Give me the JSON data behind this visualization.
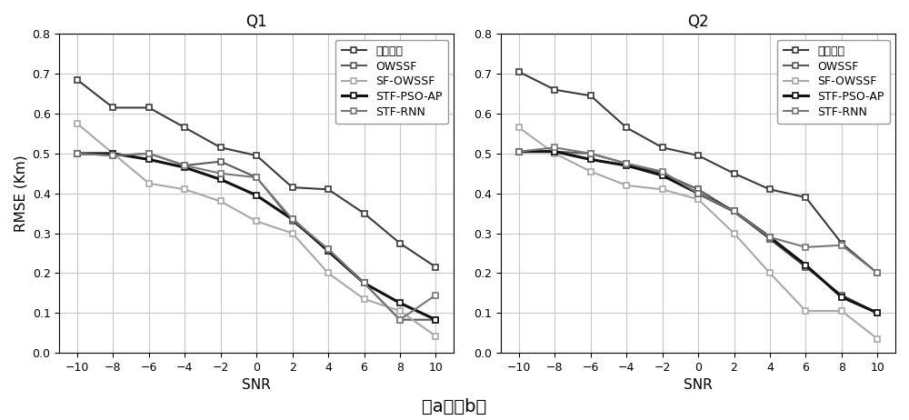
{
  "snr": [
    -10,
    -8,
    -6,
    -4,
    -2,
    0,
    2,
    4,
    6,
    8,
    10
  ],
  "Q1": {
    "两步定位": [
      0.685,
      0.615,
      0.615,
      0.565,
      0.515,
      0.495,
      0.415,
      0.41,
      0.35,
      0.275,
      0.215
    ],
    "OWSSF": [
      0.5,
      0.495,
      0.5,
      0.47,
      0.48,
      0.44,
      0.33,
      0.26,
      0.175,
      0.083,
      0.083
    ],
    "SF-OWSSF": [
      0.575,
      0.5,
      0.425,
      0.41,
      0.38,
      0.33,
      0.3,
      0.2,
      0.135,
      0.105,
      0.042
    ],
    "STF-PSO-AP": [
      0.5,
      0.5,
      0.485,
      0.465,
      0.435,
      0.395,
      0.335,
      0.255,
      0.175,
      0.125,
      0.083
    ],
    "STF-RNN": [
      0.5,
      0.495,
      0.5,
      0.47,
      0.45,
      0.44,
      0.335,
      0.26,
      0.175,
      0.083,
      0.145
    ]
  },
  "Q2": {
    "两步定位": [
      0.705,
      0.66,
      0.645,
      0.565,
      0.515,
      0.495,
      0.45,
      0.41,
      0.39,
      0.275,
      0.2
    ],
    "OWSSF": [
      0.505,
      0.505,
      0.5,
      0.475,
      0.45,
      0.41,
      0.355,
      0.285,
      0.215,
      0.145,
      0.1
    ],
    "SF-OWSSF": [
      0.565,
      0.5,
      0.455,
      0.42,
      0.41,
      0.385,
      0.3,
      0.2,
      0.105,
      0.105,
      0.035
    ],
    "STF-PSO-AP": [
      0.505,
      0.505,
      0.485,
      0.47,
      0.445,
      0.4,
      0.355,
      0.29,
      0.22,
      0.14,
      0.1
    ],
    "STF-RNN": [
      0.505,
      0.515,
      0.5,
      0.475,
      0.455,
      0.4,
      0.355,
      0.29,
      0.265,
      0.27,
      0.2
    ]
  },
  "series_styles": {
    "两步定位": {
      "color": "#3c3c3c",
      "linewidth": 1.5
    },
    "OWSSF": {
      "color": "#5a5a5a",
      "linewidth": 1.5
    },
    "SF-OWSSF": {
      "color": "#a8a8a8",
      "linewidth": 1.5
    },
    "STF-PSO-AP": {
      "color": "#111111",
      "linewidth": 2.2
    },
    "STF-RNN": {
      "color": "#787878",
      "linewidth": 1.5
    }
  },
  "xlabel": "SNR",
  "ylabel": "RMSE (Km)",
  "ylim": [
    0,
    0.8
  ],
  "yticks": [
    0,
    0.1,
    0.2,
    0.3,
    0.4,
    0.5,
    0.6,
    0.7,
    0.8
  ],
  "title_Q1": "Q1",
  "title_Q2": "Q2",
  "caption": "（a）（b）",
  "legend_labels": [
    "两步定位",
    "OWSSF",
    "SF-OWSSF",
    "STF-PSO-AP",
    "STF-RNN"
  ],
  "background_color": "#ffffff",
  "grid_color": "#c8c8c8"
}
